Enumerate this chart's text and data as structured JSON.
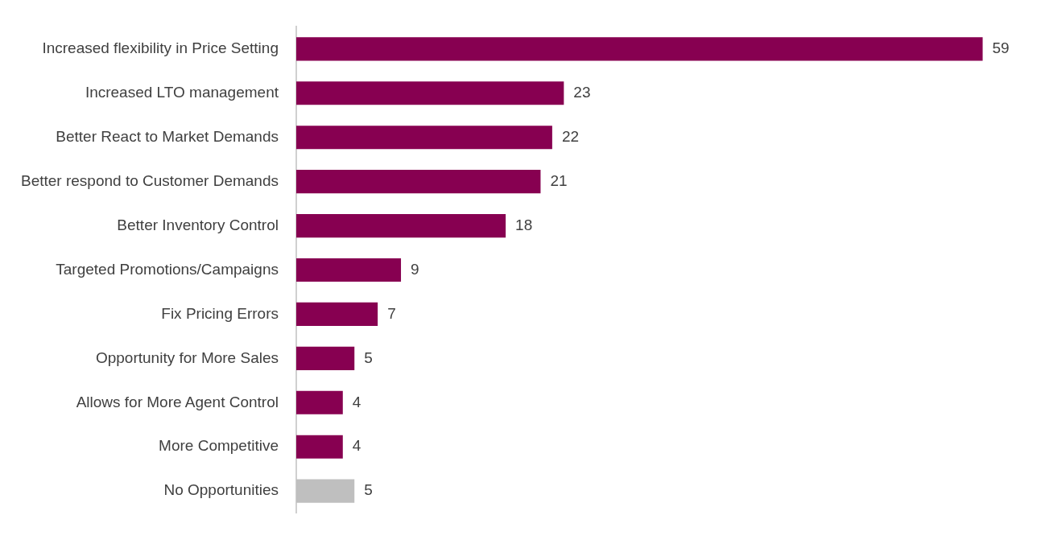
{
  "chart_data": {
    "type": "bar",
    "orientation": "horizontal",
    "categories": [
      "Increased flexibility in Price Setting",
      "Increased LTO management",
      "Better React to Market Demands",
      "Better respond to Customer Demands",
      "Better Inventory Control",
      "Targeted Promotions/Campaigns",
      "Fix Pricing Errors",
      "Opportunity for More Sales",
      "Allows for More Agent Control",
      "More Competitive",
      "No Opportunities"
    ],
    "values": [
      59,
      23,
      22,
      21,
      18,
      9,
      7,
      5,
      4,
      4,
      5
    ],
    "colors": [
      "#870051",
      "#870051",
      "#870051",
      "#870051",
      "#870051",
      "#870051",
      "#870051",
      "#870051",
      "#870051",
      "#870051",
      "#bfbfbf"
    ],
    "data_labels": true,
    "grid": false,
    "legend": false,
    "tick_labels": "y"
  }
}
